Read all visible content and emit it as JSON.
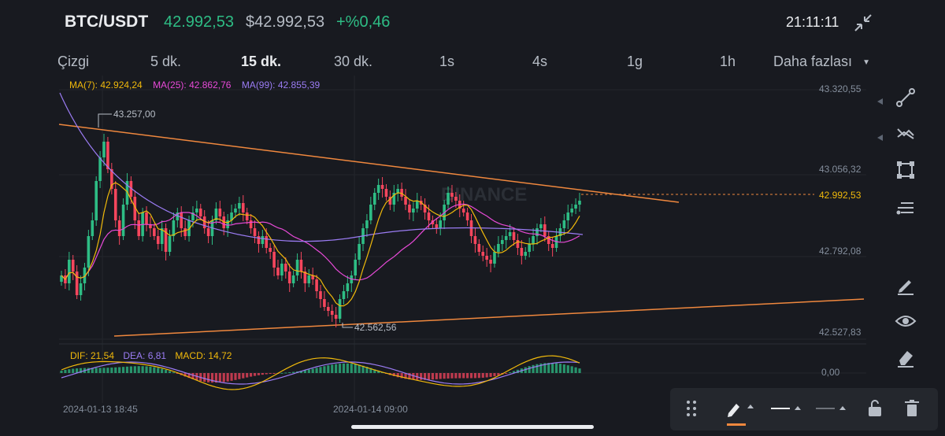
{
  "header": {
    "pair": "BTC/USDT",
    "last_price": "42.992,53",
    "usd_price": "$42.992,53",
    "change": "+%0,46",
    "time": "21:11:11"
  },
  "tabs": [
    {
      "label": "Çizgi",
      "active": false
    },
    {
      "label": "5 dk.",
      "active": false
    },
    {
      "label": "15 dk.",
      "active": true
    },
    {
      "label": "30 dk.",
      "active": false
    },
    {
      "label": "1s",
      "active": false
    },
    {
      "label": "4s",
      "active": false
    },
    {
      "label": "1g",
      "active": false
    },
    {
      "label": "1h",
      "active": false
    },
    {
      "label": "Daha fazlası",
      "active": false
    }
  ],
  "ma_legend": {
    "ma7": "MA(7): 42.924,24",
    "ma25": "MA(25): 42.862,76",
    "ma99": "MA(99): 42.855,39"
  },
  "macd_legend": {
    "dif": "DIF: 21,54",
    "dea": "DEA: 6,81",
    "macd": "MACD: 14,72"
  },
  "watermark": "BINANCE",
  "price_axis": [
    "43.320,55",
    "43.056,32",
    "42.792,08",
    "42.527,83"
  ],
  "current_price_tag": "42.992,53",
  "high_marker": "43.257,00",
  "low_marker": "42.562,56",
  "macd_axis": "0,00",
  "time_axis": [
    "2024-01-13 18:45",
    "2024-01-14 09:00"
  ],
  "colors": {
    "up": "#2ebd85",
    "down": "#f6465d",
    "ma7": "#f0b90b",
    "ma25": "#e84ad8",
    "ma99": "#9b7cf4",
    "trendline": "#f0883e",
    "accent": "#f0883e"
  },
  "side_tools": [
    "trend-line-icon",
    "multi-line-icon",
    "rectangle-icon",
    "fib-icon",
    "edit-icon",
    "eye-icon",
    "eraser-icon"
  ],
  "toolbar_tools": [
    "drag-handle-icon",
    "pencil-icon",
    "line-style-icon",
    "line-dash-icon",
    "lock-icon",
    "trash-icon"
  ]
}
